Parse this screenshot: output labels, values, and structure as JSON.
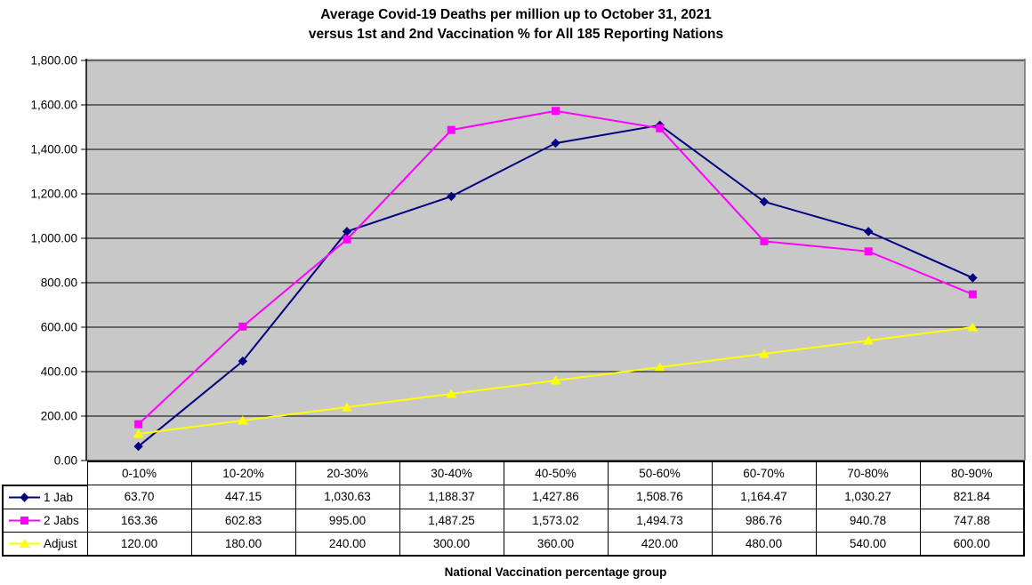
{
  "colors": {
    "page_background": "#ffffff",
    "plot_background": "#c8c8c8",
    "gridline": "#000000",
    "axis": "#000000",
    "plot_border": "#6e6e6e",
    "text": "#000000",
    "table_border": "#000000"
  },
  "chart_data": {
    "type": "line",
    "title": "Average Covid-19 Deaths per million up to October 31, 2021",
    "subtitle": "versus 1st and 2nd Vaccination % for All 185 Reporting Nations",
    "xlabel": "National Vaccination percentage group",
    "ylabel": "",
    "categories": [
      "0-10%",
      "10-20%",
      "20-30%",
      "30-40%",
      "40-50%",
      "50-60%",
      "60-70%",
      "70-80%",
      "80-90%"
    ],
    "series": [
      {
        "name": "1 Jab",
        "color": "#000080",
        "marker": "diamond",
        "values": [
          63.7,
          447.15,
          1030.63,
          1188.37,
          1427.86,
          1508.76,
          1164.47,
          1030.27,
          821.84
        ],
        "values_formatted": [
          "63.70",
          "447.15",
          "1,030.63",
          "1,188.37",
          "1,427.86",
          "1,508.76",
          "1,164.47",
          "1,030.27",
          "821.84"
        ]
      },
      {
        "name": "2 Jabs",
        "color": "#ff00ff",
        "marker": "square",
        "values": [
          163.36,
          602.83,
          995.0,
          1487.25,
          1573.02,
          1494.73,
          986.76,
          940.78,
          747.88
        ],
        "values_formatted": [
          "163.36",
          "602.83",
          "995.00",
          "1,487.25",
          "1,573.02",
          "1,494.73",
          "986.76",
          "940.78",
          "747.88"
        ]
      },
      {
        "name": "Adjust",
        "color": "#ffff00",
        "marker": "triangle",
        "values": [
          120.0,
          180.0,
          240.0,
          300.0,
          360.0,
          420.0,
          480.0,
          540.0,
          600.0
        ],
        "values_formatted": [
          "120.00",
          "180.00",
          "240.00",
          "300.00",
          "360.00",
          "420.00",
          "480.00",
          "540.00",
          "600.00"
        ]
      }
    ],
    "ylim": [
      0,
      1800
    ],
    "ytick_step": 200,
    "ytick_labels": [
      "0.00",
      "200.00",
      "400.00",
      "600.00",
      "800.00",
      "1,000.00",
      "1,200.00",
      "1,400.00",
      "1,600.00",
      "1,800.00"
    ],
    "grid": true,
    "legend_position": "table-left"
  }
}
